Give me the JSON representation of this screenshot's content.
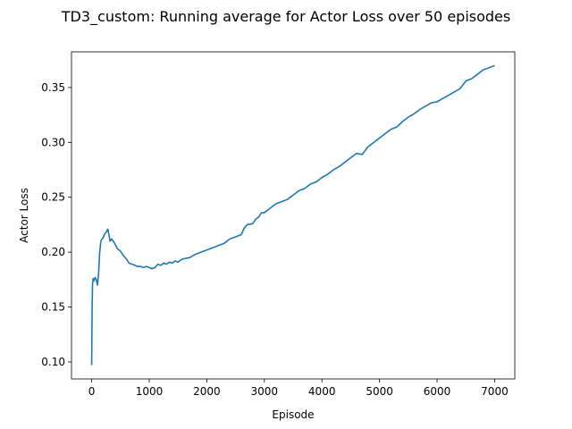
{
  "chart_data": {
    "type": "line",
    "title": "TD3_custom: Running average for Actor Loss over 50 episodes",
    "xlabel": "Episode",
    "ylabel": "Actor Loss",
    "xlim": [
      -350,
      7350
    ],
    "ylim": [
      0.0845,
      0.3825
    ],
    "xticks": [
      0,
      1000,
      2000,
      3000,
      4000,
      5000,
      6000,
      7000
    ],
    "xtick_labels": [
      "0",
      "1000",
      "2000",
      "3000",
      "4000",
      "5000",
      "6000",
      "7000"
    ],
    "yticks": [
      0.1,
      0.15,
      0.2,
      0.25,
      0.3,
      0.35
    ],
    "ytick_labels": [
      "0.10",
      "0.15",
      "0.20",
      "0.25",
      "0.30",
      "0.35"
    ],
    "grid": false,
    "color": "#1f77b4",
    "series": [
      {
        "x": [
          0,
          8,
          15,
          25,
          40,
          60,
          80,
          100,
          120,
          140,
          160,
          180,
          200,
          220,
          250,
          280,
          300,
          320,
          350,
          400,
          450,
          500,
          550,
          600,
          650,
          700,
          750,
          800,
          850,
          900,
          950,
          1000,
          1050,
          1100,
          1150,
          1200,
          1250,
          1300,
          1350,
          1400,
          1450,
          1500,
          1550,
          1600,
          1700,
          1800,
          1900,
          2000,
          2100,
          2200,
          2300,
          2400,
          2500,
          2600,
          2650,
          2700,
          2800,
          2850,
          2900,
          2950,
          3000,
          3100,
          3200,
          3300,
          3400,
          3500,
          3600,
          3700,
          3800,
          3900,
          4000,
          4100,
          4200,
          4300,
          4400,
          4500,
          4600,
          4700,
          4800,
          4900,
          5000,
          5100,
          5200,
          5300,
          5400,
          5500,
          5600,
          5700,
          5800,
          5900,
          6000,
          6100,
          6200,
          6300,
          6400,
          6500,
          6600,
          6700,
          6800,
          6900,
          7000
        ],
        "y": [
          0.097,
          0.148,
          0.17,
          0.176,
          0.174,
          0.177,
          0.175,
          0.17,
          0.18,
          0.2,
          0.21,
          0.212,
          0.213,
          0.216,
          0.218,
          0.221,
          0.216,
          0.21,
          0.212,
          0.208,
          0.203,
          0.201,
          0.197,
          0.194,
          0.19,
          0.189,
          0.188,
          0.187,
          0.187,
          0.186,
          0.187,
          0.186,
          0.185,
          0.186,
          0.189,
          0.188,
          0.19,
          0.189,
          0.191,
          0.19,
          0.192,
          0.191,
          0.193,
          0.194,
          0.195,
          0.198,
          0.2,
          0.202,
          0.204,
          0.206,
          0.208,
          0.212,
          0.214,
          0.216,
          0.222,
          0.225,
          0.226,
          0.23,
          0.232,
          0.236,
          0.236,
          0.24,
          0.244,
          0.246,
          0.248,
          0.252,
          0.256,
          0.258,
          0.262,
          0.264,
          0.268,
          0.271,
          0.275,
          0.278,
          0.282,
          0.286,
          0.29,
          0.289,
          0.296,
          0.3,
          0.304,
          0.308,
          0.312,
          0.314,
          0.319,
          0.323,
          0.326,
          0.33,
          0.333,
          0.336,
          0.337,
          0.34,
          0.343,
          0.346,
          0.349,
          0.356,
          0.358,
          0.362,
          0.366,
          0.368,
          0.37
        ]
      }
    ]
  }
}
